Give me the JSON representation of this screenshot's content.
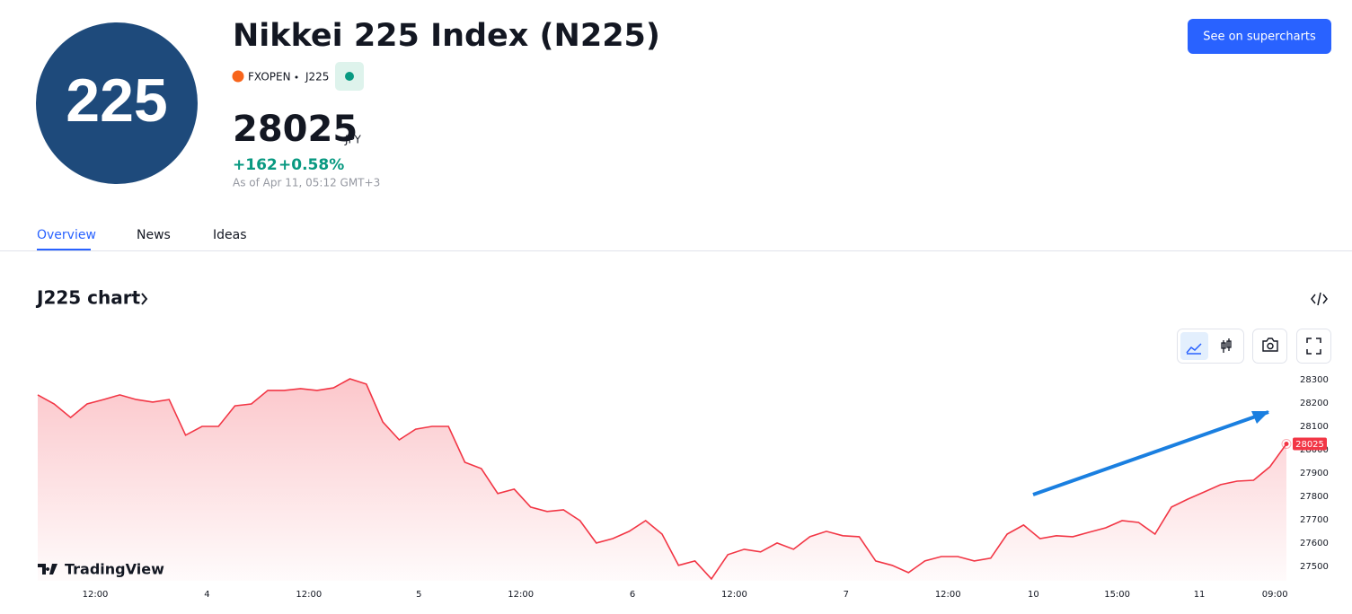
{
  "header": {
    "logo": "225",
    "title": "Nikkei 225 Index (N225)",
    "exchange": "FXOPEN",
    "symbol": "J225",
    "price": "28025",
    "currency": "JPY",
    "change": "+162",
    "change_percent": "+0.58%",
    "as_of": "As of Apr 11, 05:12 GMT+3"
  },
  "button": "See on supercharts",
  "tabs": [
    "Overview",
    "News",
    "Ideas"
  ],
  "section_title": "J225 chart",
  "chart_data": {
    "type": "area",
    "watermark": "TradingView",
    "color": "#f23645",
    "values": [
      28235,
      28196,
      28138,
      28196,
      28215,
      28235,
      28215,
      28204,
      28215,
      28062,
      28100,
      28100,
      28188,
      28196,
      28254,
      28254,
      28262,
      28254,
      28265,
      28304,
      28281,
      28119,
      28042,
      28088,
      28100,
      28100,
      27946,
      27919,
      27812,
      27831,
      27754,
      27735,
      27742,
      27696,
      27600,
      27619,
      27650,
      27696,
      27638,
      27504,
      27523,
      27446,
      27550,
      27573,
      27562,
      27600,
      27573,
      27627,
      27650,
      27631,
      27627,
      27523,
      27504,
      27473,
      27523,
      27542,
      27542,
      27523,
      27535,
      27638,
      27677,
      27619,
      27631,
      27627,
      27646,
      27665,
      27696,
      27688,
      27638,
      27754,
      27788,
      27819,
      27850,
      27865,
      27869,
      27927,
      28025
    ],
    "xlim": [
      0,
      76
    ],
    "xticks": [
      {
        "value": 3.5,
        "label": "12:00"
      },
      {
        "value": 10.3,
        "label": "4"
      },
      {
        "value": 16.5,
        "label": "12:00"
      },
      {
        "value": 23.2,
        "label": "5"
      },
      {
        "value": 29.4,
        "label": "12:00"
      },
      {
        "value": 36.2,
        "label": "6"
      },
      {
        "value": 42.4,
        "label": "12:00"
      },
      {
        "value": 49.2,
        "label": "7"
      },
      {
        "value": 55.4,
        "label": "12:00"
      },
      {
        "value": 60.6,
        "label": "10"
      },
      {
        "value": 65.7,
        "label": "15:00"
      },
      {
        "value": 70.7,
        "label": "11"
      },
      {
        "value": 75.3,
        "label": "09:00"
      }
    ],
    "ylim": [
      27438,
      28350
    ],
    "yticks": [
      27500,
      27600,
      27700,
      27800,
      27900,
      28000,
      28100,
      28200,
      28300
    ]
  }
}
